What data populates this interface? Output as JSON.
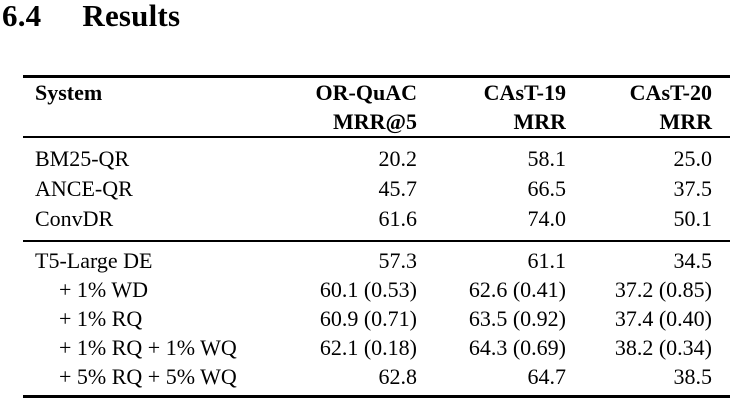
{
  "heading": {
    "number": "6.4",
    "title": "Results"
  },
  "table": {
    "header": {
      "col1": "System",
      "col2_line1": "OR-QuAC",
      "col2_line2": "MRR@5",
      "col3_line1": "CAsT-19",
      "col3_line2": "MRR",
      "col4_line1": "CAsT-20",
      "col4_line2": "MRR"
    },
    "group1": [
      [
        "BM25-QR",
        "20.2",
        "58.1",
        "25.0"
      ],
      [
        "ANCE-QR",
        "45.7",
        "66.5",
        "37.5"
      ],
      [
        "ConvDR",
        "61.6",
        "74.0",
        "50.1"
      ]
    ],
    "group2": [
      [
        "T5-Large DE",
        "57.3",
        "61.1",
        "34.5"
      ],
      [
        "+ 1% WD",
        "60.1 (0.53)",
        "62.6 (0.41)",
        "37.2 (0.85)"
      ],
      [
        "+ 1% RQ",
        "60.9 (0.71)",
        "63.5 (0.92)",
        "37.4 (0.40)"
      ],
      [
        "+ 1% RQ + 1% WQ",
        "62.1 (0.18)",
        "64.3 (0.69)",
        "38.2 (0.34)"
      ],
      [
        "+ 5% RQ + 5% WQ",
        "62.8",
        "64.7",
        "38.5"
      ]
    ]
  },
  "colors": {
    "text": "#000000",
    "background": "#ffffff",
    "rule": "#000000"
  }
}
